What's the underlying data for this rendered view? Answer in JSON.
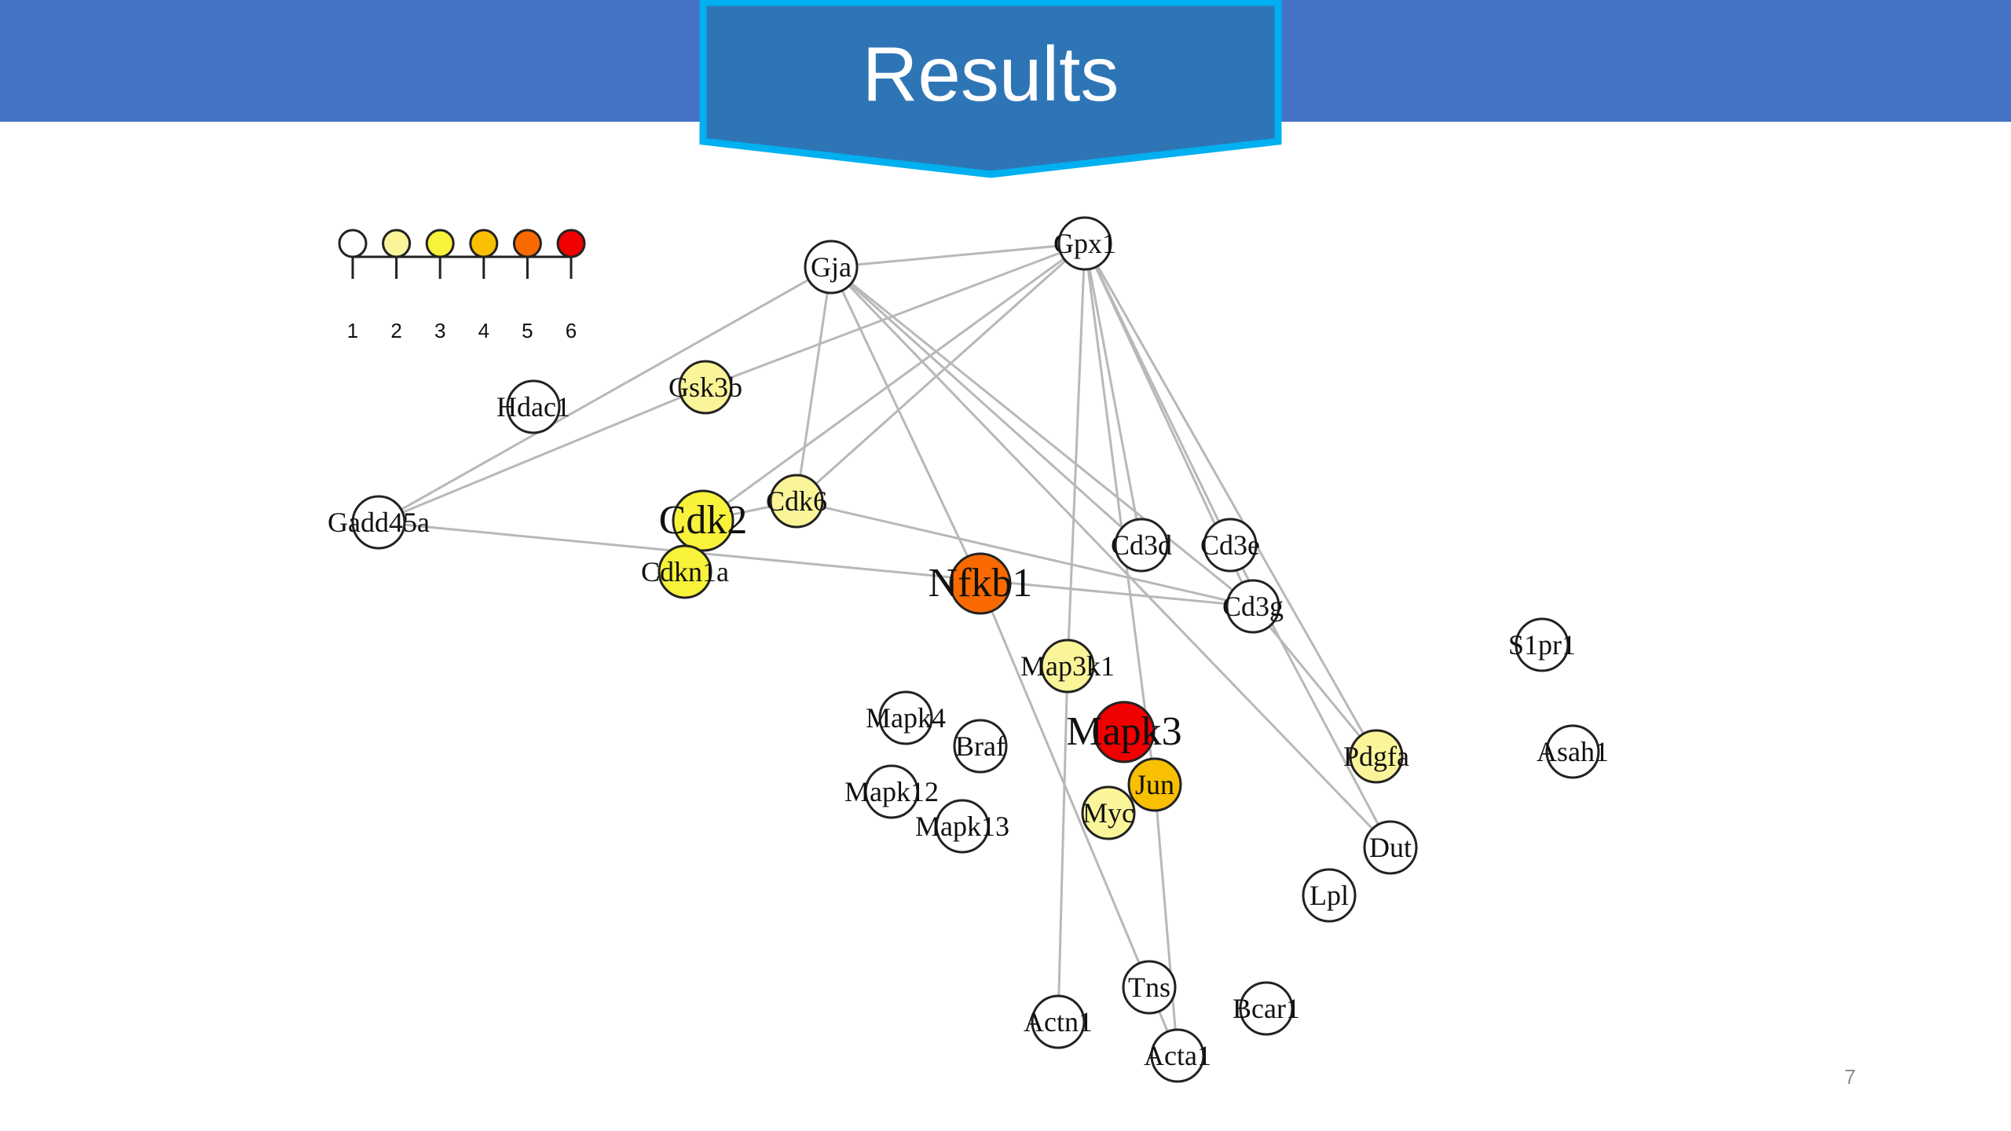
{
  "slide": {
    "title": "Results",
    "page_number": "7"
  },
  "colors": {
    "header_bar": "#4472C4",
    "banner_fill": "#2E75B6",
    "banner_border": "#00B0F0",
    "edge": "#B8B8B8"
  },
  "legend": {
    "levels": [
      {
        "label": "1",
        "color": "#FFFFFF"
      },
      {
        "label": "2",
        "color": "#FBF59A"
      },
      {
        "label": "3",
        "color": "#F8F23A"
      },
      {
        "label": "4",
        "color": "#F8C000"
      },
      {
        "label": "5",
        "color": "#F86A00"
      },
      {
        "label": "6",
        "color": "#F00000"
      }
    ]
  },
  "network": {
    "nodes": [
      {
        "id": "Gja",
        "level": 1
      },
      {
        "id": "Gpx1",
        "level": 1
      },
      {
        "id": "Gsk3b",
        "level": 2
      },
      {
        "id": "Hdac1",
        "level": 1
      },
      {
        "id": "Gadd45a",
        "level": 1
      },
      {
        "id": "Cdk2",
        "level": 3
      },
      {
        "id": "Cdk6",
        "level": 2
      },
      {
        "id": "Cdkn1a",
        "level": 3
      },
      {
        "id": "Nfkb1",
        "level": 5
      },
      {
        "id": "Cd3d",
        "level": 1
      },
      {
        "id": "Cd3e",
        "level": 1
      },
      {
        "id": "Cd3g",
        "level": 1
      },
      {
        "id": "Map3k1",
        "level": 2
      },
      {
        "id": "Mapk4",
        "level": 1
      },
      {
        "id": "Braf",
        "level": 1
      },
      {
        "id": "Mapk3",
        "level": 6
      },
      {
        "id": "Jun",
        "level": 4
      },
      {
        "id": "Myc",
        "level": 2
      },
      {
        "id": "Mapk12",
        "level": 1
      },
      {
        "id": "Mapk13",
        "level": 1
      },
      {
        "id": "S1pr1",
        "level": 1
      },
      {
        "id": "Pdgfa",
        "level": 2
      },
      {
        "id": "Asah1",
        "level": 1
      },
      {
        "id": "Dut",
        "level": 1
      },
      {
        "id": "Lpl",
        "level": 1
      },
      {
        "id": "Tns",
        "level": 1
      },
      {
        "id": "Bcar1",
        "level": 1
      },
      {
        "id": "Actn1",
        "level": 1
      },
      {
        "id": "Acta1",
        "level": 1
      }
    ],
    "edges": [
      [
        "Gja",
        "Gpx1"
      ],
      [
        "Gja",
        "Gadd45a"
      ],
      [
        "Gja",
        "Cdk6"
      ],
      [
        "Gja",
        "Nfkb1"
      ],
      [
        "Gja",
        "Cd3d"
      ],
      [
        "Gja",
        "Cd3g"
      ],
      [
        "Gja",
        "Dut"
      ],
      [
        "Gpx1",
        "Gsk3b"
      ],
      [
        "Gpx1",
        "Cdk6"
      ],
      [
        "Gpx1",
        "Cdk2"
      ],
      [
        "Gpx1",
        "Map3k1"
      ],
      [
        "Gpx1",
        "Jun"
      ],
      [
        "Gpx1",
        "Cd3d"
      ],
      [
        "Gpx1",
        "Cd3e"
      ],
      [
        "Gpx1",
        "Cd3g"
      ],
      [
        "Gpx1",
        "Pdgfa"
      ],
      [
        "Gsk3b",
        "Gadd45a"
      ],
      [
        "Gadd45a",
        "Cd3g"
      ],
      [
        "Cdk2",
        "Cdk6"
      ],
      [
        "Cdk6",
        "Cd3g"
      ],
      [
        "Nfkb1",
        "Tns"
      ],
      [
        "Cd3g",
        "Pdgfa"
      ],
      [
        "Cd3e",
        "Dut"
      ],
      [
        "Map3k1",
        "Actn1"
      ],
      [
        "Jun",
        "Acta1"
      ],
      [
        "Tns",
        "Acta1"
      ]
    ]
  }
}
